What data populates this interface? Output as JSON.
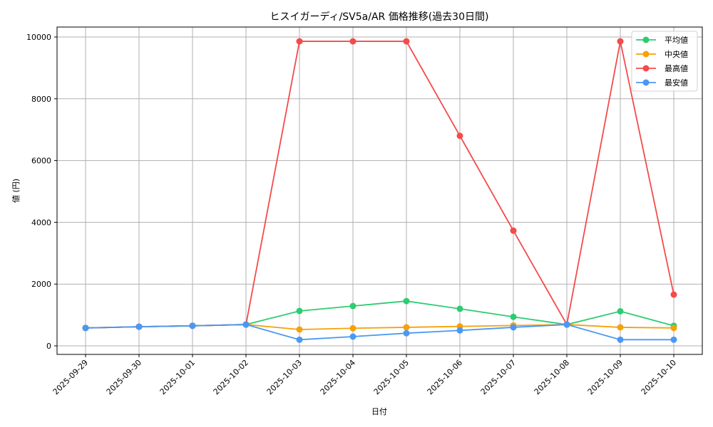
{
  "chart_data": {
    "type": "line",
    "title": "ヒスイガーディ/SV5a/AR 価格推移(過去30日間)",
    "xlabel": "日付",
    "ylabel": "値 (円)",
    "ylim": [
      -300,
      10300
    ],
    "yticks": [
      0,
      2000,
      4000,
      6000,
      8000,
      10000
    ],
    "grid": true,
    "legend_position": "upper right",
    "categories": [
      "2025-09-29",
      "2025-09-30",
      "2025-10-01",
      "2025-10-02",
      "2025-10-03",
      "2025-10-04",
      "2025-10-05",
      "2025-10-06",
      "2025-10-07",
      "2025-10-08",
      "2025-10-09",
      "2025-10-10"
    ],
    "series": [
      {
        "name": "平均値",
        "color": "#2ecc71",
        "values": [
          580,
          620,
          650,
          690,
          1130,
          1290,
          1450,
          1200,
          940,
          690,
          1120,
          650
        ]
      },
      {
        "name": "中央値",
        "color": "#f5a10a",
        "values": [
          580,
          620,
          650,
          690,
          530,
          570,
          600,
          630,
          660,
          690,
          600,
          580
        ]
      },
      {
        "name": "最高値",
        "color": "#f44b4b",
        "values": [
          580,
          620,
          650,
          690,
          9860,
          9860,
          9860,
          6800,
          3730,
          690,
          9860,
          1660
        ]
      },
      {
        "name": "最安値",
        "color": "#4a98f5",
        "values": [
          580,
          620,
          650,
          690,
          200,
          300,
          410,
          500,
          600,
          690,
          200,
          200
        ]
      }
    ]
  }
}
